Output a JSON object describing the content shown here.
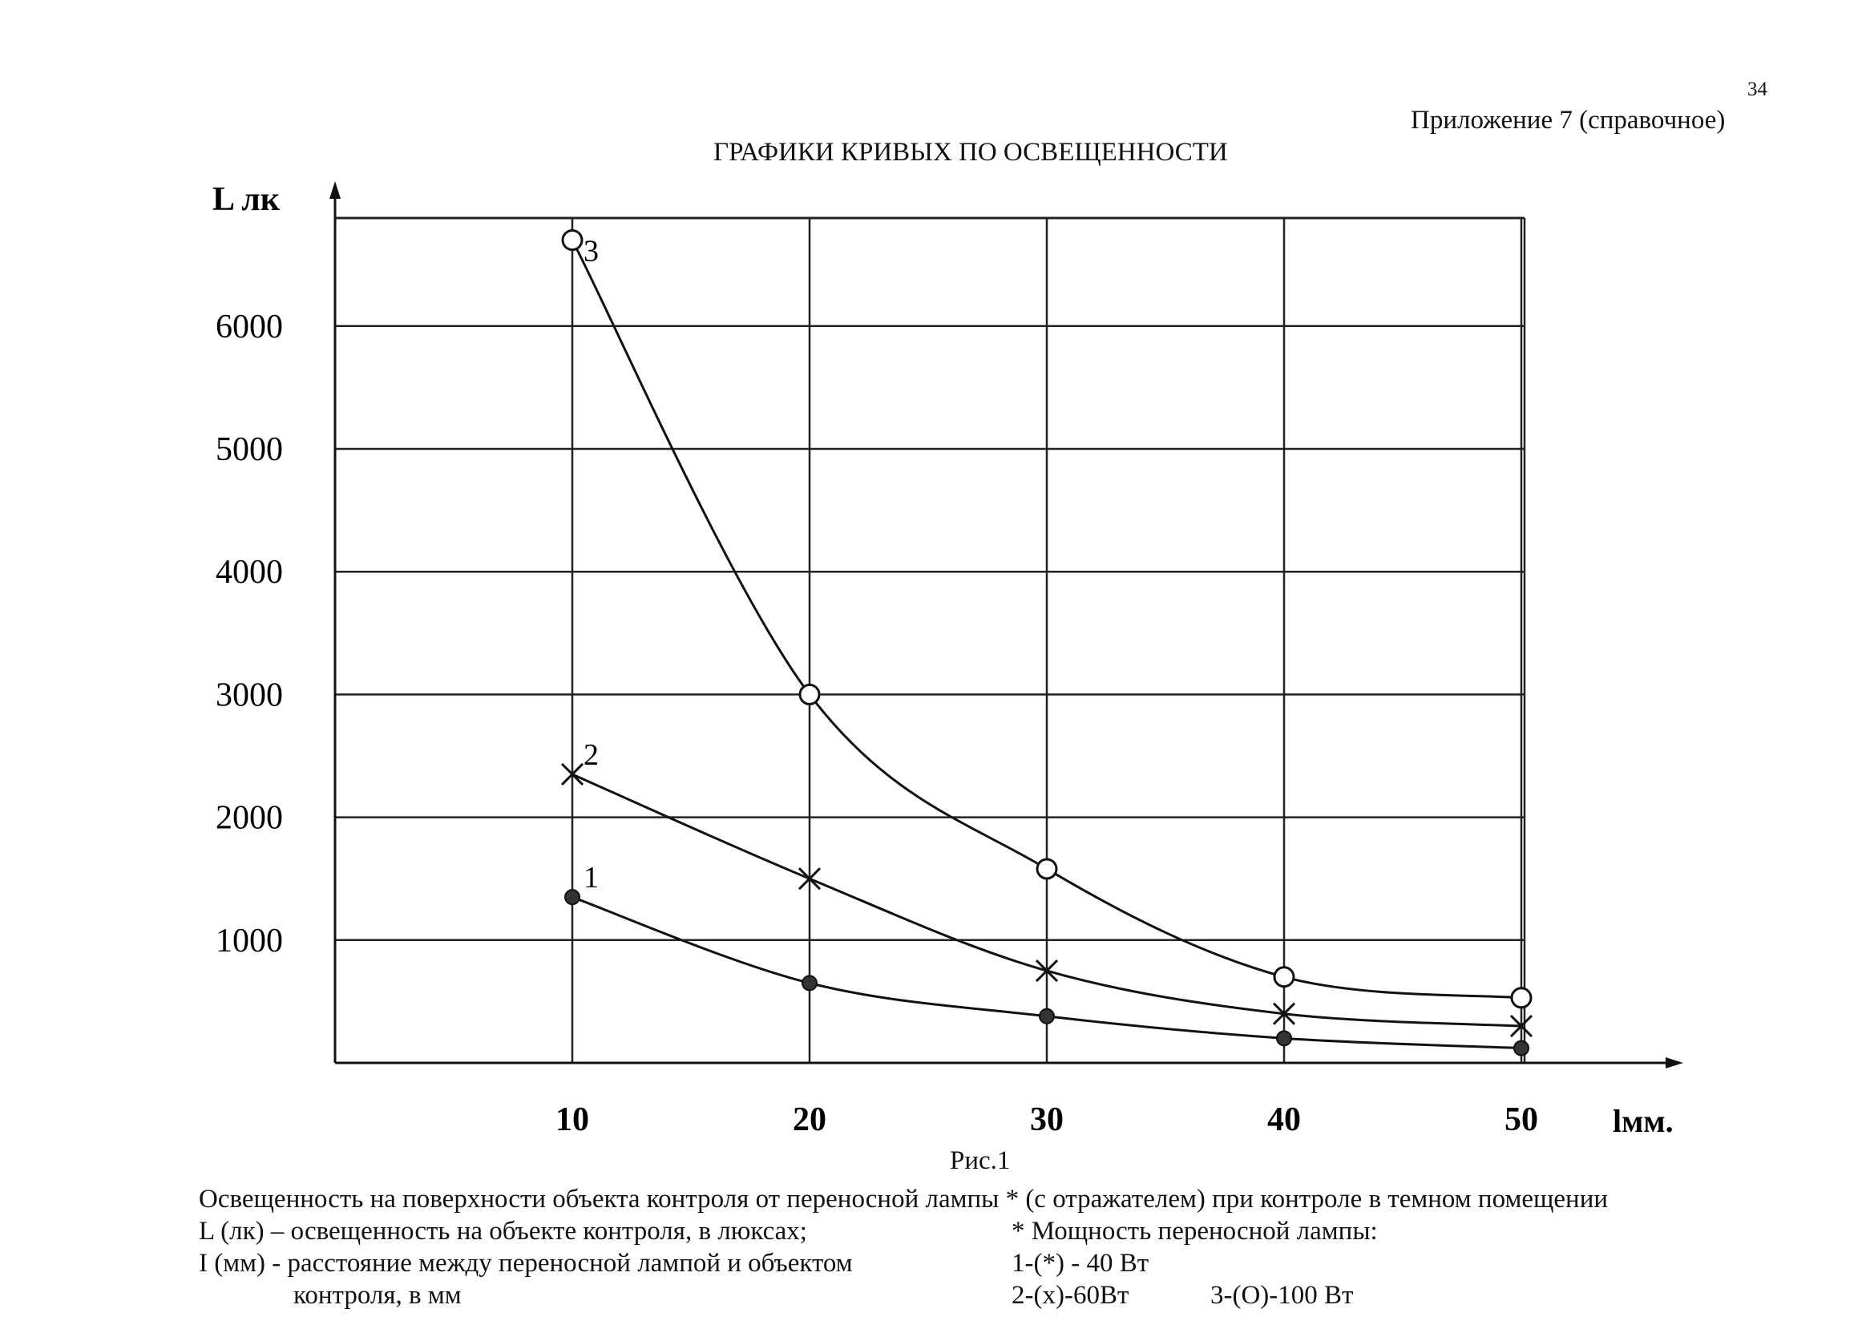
{
  "page": {
    "number": "34",
    "appendix": "Приложение 7 (справочное)",
    "title": "ГРАФИКИ КРИВЫХ ПО ОСВЕЩЕННОСТИ",
    "figure_label": "Рис.1",
    "caption": "Освещенность на поверхности объекта контроля от переносной лампы * (с отражателем) при контроле в темном помещении",
    "definitions": {
      "l": "L (лк) – освещенность на объекте контроля, в люксах;",
      "i_line1": "I (мм) - расстояние между переносной лампой и объектом",
      "i_line2": "контроля, в мм"
    },
    "power": {
      "title": "* Мощность переносной лампы:",
      "p1": "1-(*) - 40 Вт",
      "p2": "2-(х)-60Вт",
      "p3": "3-(О)-100 Вт"
    }
  },
  "chart_data": {
    "type": "line",
    "title": "ГРАФИКИ КРИВЫХ ПО ОСВЕЩЕННОСТИ",
    "ylabel": "L лк",
    "xlabel": "lмм.",
    "x": [
      10,
      20,
      30,
      40,
      50
    ],
    "x_tick_labels": [
      "10",
      "20",
      "30",
      "40",
      "50"
    ],
    "y_tick_values": [
      1000,
      2000,
      3000,
      4000,
      5000,
      6000
    ],
    "y_tick_labels": [
      "1000",
      "2000",
      "3000",
      "4000",
      "5000",
      "6000"
    ],
    "xlim": [
      0,
      56
    ],
    "ylim": [
      0,
      7000
    ],
    "grid": true,
    "series": [
      {
        "name": "1",
        "marker": "dot",
        "values": [
          1350,
          650,
          380,
          200,
          120
        ]
      },
      {
        "name": "2",
        "marker": "cross",
        "values": [
          2350,
          1500,
          750,
          400,
          300
        ]
      },
      {
        "name": "3",
        "marker": "circle",
        "values": [
          6700,
          3000,
          1580,
          700,
          530
        ]
      }
    ]
  }
}
